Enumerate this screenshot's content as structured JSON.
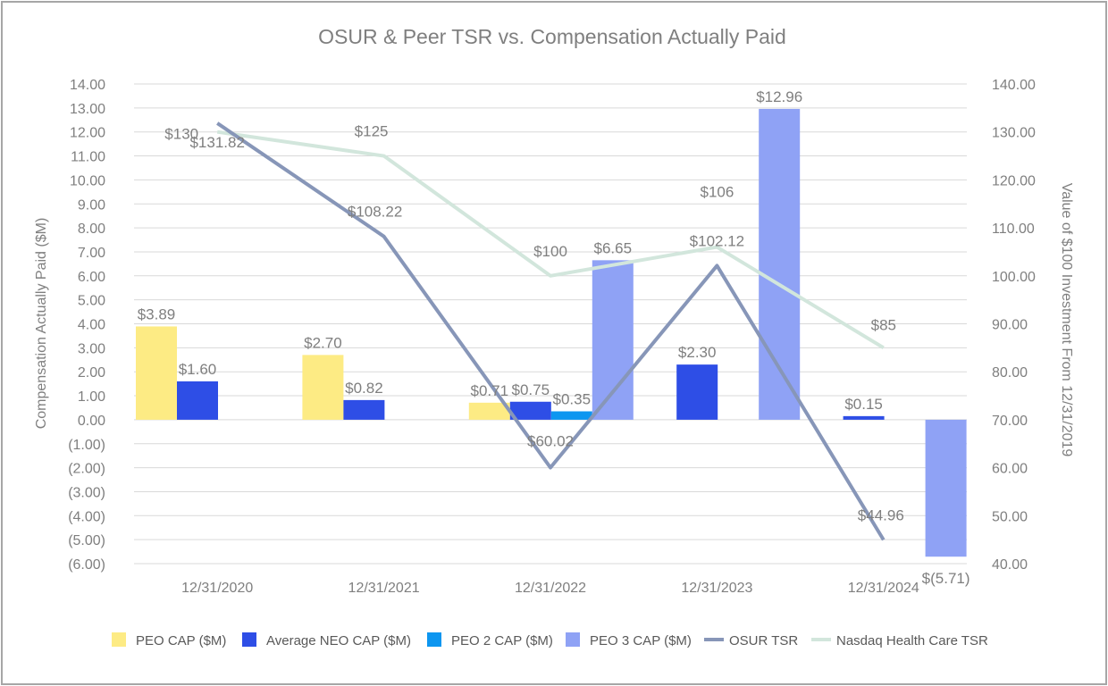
{
  "chart_data": {
    "type": "bar",
    "title": "OSUR & Peer TSR vs. Compensation Actually Paid",
    "ylabel": "Compensation Actually Paid ($M)",
    "y2label": "Value of $100 Investment From 12/31/2019",
    "categories": [
      "12/31/2020",
      "12/31/2021",
      "12/31/2022",
      "12/31/2023",
      "12/31/2024"
    ],
    "ylim": [
      -6,
      14
    ],
    "y2lim": [
      40,
      140
    ],
    "y_ticks": [
      "14.00",
      "13.00",
      "12.00",
      "11.00",
      "10.00",
      "9.00",
      "8.00",
      "7.00",
      "6.00",
      "5.00",
      "4.00",
      "3.00",
      "2.00",
      "1.00",
      "0.00",
      "(1.00)",
      "(2.00)",
      "(3.00)",
      "(4.00)",
      "(5.00)",
      "(6.00)"
    ],
    "y2_ticks": [
      "140.00",
      "130.00",
      "120.00",
      "110.00",
      "100.00",
      "90.00",
      "80.00",
      "70.00",
      "60.00",
      "50.00",
      "40.00"
    ],
    "grid": true,
    "legend_position": "bottom",
    "bar_series": [
      {
        "name": "PEO CAP ($M)",
        "color": "#fdeb84",
        "values": [
          3.89,
          2.7,
          0.71,
          null,
          null
        ],
        "labels": [
          "$3.89",
          "$2.70",
          "$0.71",
          "",
          ""
        ]
      },
      {
        "name": "Average NEO CAP ($M)",
        "color": "#2e4ee6",
        "values": [
          1.6,
          0.82,
          0.75,
          2.3,
          0.15
        ],
        "labels": [
          "$1.60",
          "$0.82",
          "$0.75",
          "$2.30",
          "$0.15"
        ]
      },
      {
        "name": "PEO 2 CAP ($M)",
        "color": "#0d96f0",
        "values": [
          null,
          null,
          0.35,
          null,
          null
        ],
        "labels": [
          "",
          "",
          "$0.35",
          "",
          ""
        ]
      },
      {
        "name": "PEO 3 CAP ($M)",
        "color": "#8fa2f5",
        "values": [
          null,
          null,
          6.65,
          12.96,
          -5.71
        ],
        "labels": [
          "",
          "",
          "$6.65",
          "$12.96",
          "$(5.71)"
        ]
      }
    ],
    "line_series": [
      {
        "name": "OSUR TSR",
        "color": "#8796b8",
        "axis": "right",
        "values": [
          131.82,
          108.22,
          60.02,
          102.12,
          44.96
        ],
        "labels": [
          "$131.82",
          "$108.22",
          "$60.02",
          "$102.12",
          "$44.96"
        ]
      },
      {
        "name": "Nasdaq Health Care TSR",
        "color": "#d2e6dc",
        "axis": "right",
        "values": [
          130,
          125,
          100,
          106,
          85
        ],
        "labels": [
          "$130",
          "$125",
          "$100",
          "$106",
          "$85"
        ]
      }
    ]
  }
}
